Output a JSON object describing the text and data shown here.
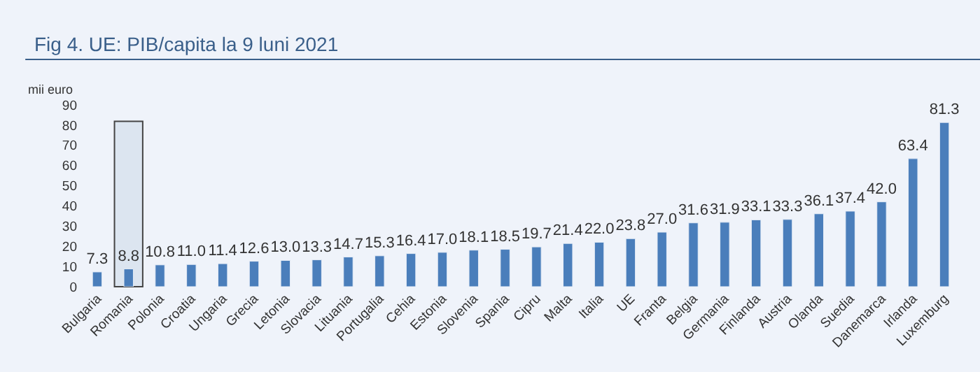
{
  "chart_data": {
    "type": "bar",
    "title": "Fig 4. UE: PIB/capita la 9 luni 2021",
    "ylabel": "mii euro",
    "categories": [
      "Bulgaria",
      "Romania",
      "Polonia",
      "Croatia",
      "Ungaria",
      "Grecia",
      "Letonia",
      "Slovacia",
      "Lituania",
      "Portugalia",
      "Cehia",
      "Estonia",
      "Slovenia",
      "Spania",
      "Cipru",
      "Malta",
      "Italia",
      "UE",
      "Franta",
      "Belgia",
      "Germania",
      "Finlanda",
      "Austria",
      "Olanda",
      "Suedia",
      "Danemarca",
      "Irlanda",
      "Luxemburg"
    ],
    "values": [
      7.3,
      8.8,
      10.8,
      11.0,
      11.4,
      12.6,
      13.0,
      13.3,
      14.7,
      15.3,
      16.4,
      17.0,
      18.1,
      18.5,
      19.7,
      21.4,
      22.0,
      23.8,
      27.0,
      31.6,
      31.9,
      33.1,
      33.3,
      36.1,
      37.4,
      42.0,
      63.4,
      81.3
    ],
    "value_labels": [
      "7.3",
      "8.8",
      "10.8",
      "11.0",
      "11.4",
      "12.6",
      "13.0",
      "13.3",
      "14.7",
      "15.3",
      "16.4",
      "17.0",
      "18.1",
      "18.5",
      "19.7",
      "21.4",
      "22.0",
      "23.8",
      "27.0",
      "31.6",
      "31.9",
      "33.1",
      "33.3",
      "36.1",
      "37.4",
      "42.0",
      "63.4",
      "81.3"
    ],
    "color": "#4a7ebb",
    "ylim": [
      0,
      90
    ],
    "yticks": [
      0,
      10,
      20,
      30,
      40,
      50,
      60,
      70,
      80,
      90
    ],
    "grid": false,
    "legend": false,
    "bands": [
      {
        "axis": "x",
        "from": "Romania",
        "to": "Romania",
        "color": "#dce5f0"
      }
    ]
  }
}
